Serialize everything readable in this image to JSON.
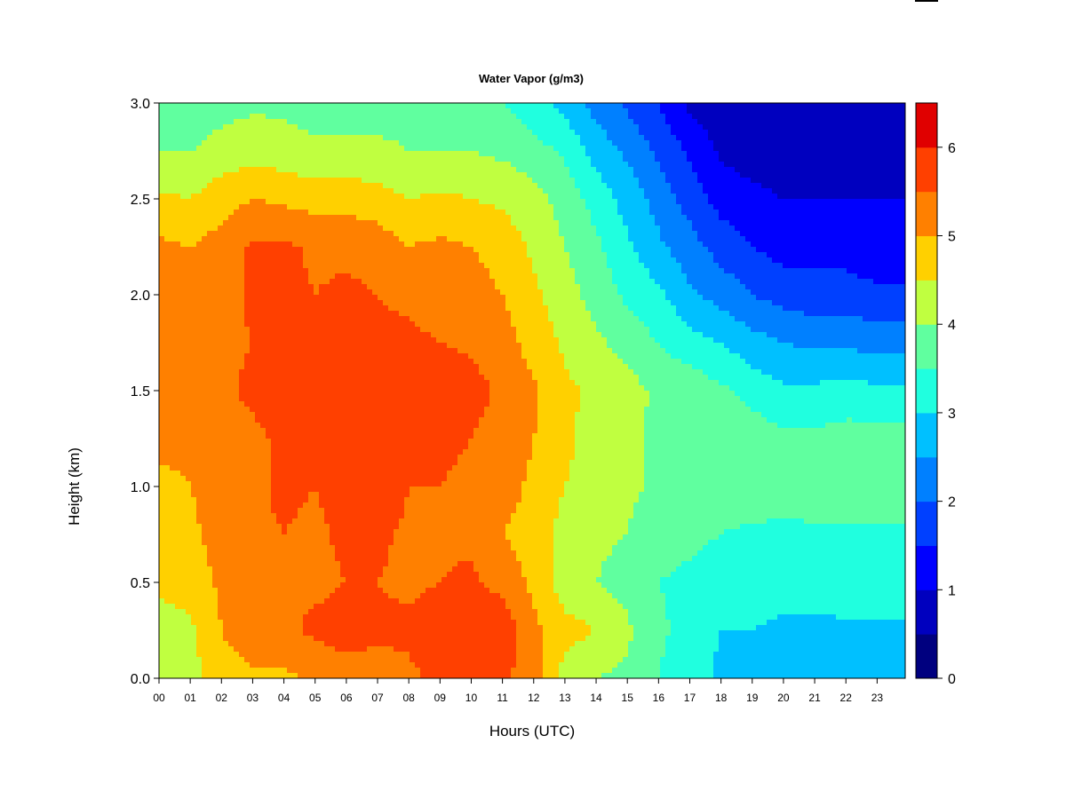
{
  "chart_data": {
    "type": "heatmap",
    "title": "Water Vapor (g/m3)",
    "xlabel": "Hours (UTC)",
    "ylabel": "Height (km)",
    "xlim": [
      0,
      23.9
    ],
    "ylim": [
      0,
      3.0
    ],
    "x_ticks": [
      0,
      1,
      2,
      3,
      4,
      5,
      6,
      7,
      8,
      9,
      10,
      11,
      12,
      13,
      14,
      15,
      16,
      17,
      18,
      19,
      20,
      21,
      22,
      23
    ],
    "x_tick_labels": [
      "00",
      "01",
      "02",
      "03",
      "04",
      "05",
      "06",
      "07",
      "08",
      "09",
      "10",
      "11",
      "12",
      "13",
      "14",
      "15",
      "16",
      "17",
      "18",
      "19",
      "20",
      "21",
      "22",
      "23"
    ],
    "y_ticks": [
      0,
      0.5,
      1.0,
      1.5,
      2.0,
      2.5,
      3.0
    ],
    "y_tick_labels": [
      "0.0",
      "0.5",
      "1.0",
      "1.5",
      "2.0",
      "2.5",
      "3.0"
    ],
    "colorbar": {
      "levels": [
        0,
        0.5,
        1,
        1.5,
        2,
        2.5,
        3,
        3.5,
        4,
        4.5,
        5,
        5.5,
        6,
        6.5
      ],
      "tick_values": [
        0,
        1,
        2,
        3,
        4,
        5,
        6
      ],
      "tick_labels": [
        "0",
        "1",
        "2",
        "3",
        "4",
        "5",
        "6"
      ],
      "colors": [
        "#00007F",
        "#0000BF",
        "#0000FF",
        "#0040FF",
        "#0080FF",
        "#00C0FF",
        "#20FFDF",
        "#60FF9F",
        "#C0FF40",
        "#FFD000",
        "#FF8000",
        "#FF4000",
        "#E00000",
        "#800000"
      ]
    },
    "profile_heights_km": [
      0,
      0.25,
      0.5,
      0.75,
      1.0,
      1.25,
      1.5,
      1.75,
      2.0,
      2.25,
      2.5,
      2.75,
      3.0
    ],
    "profiles": [
      {
        "hour": 0,
        "values": [
          4.2,
          4.3,
          4.6,
          4.8,
          4.9,
          5.1,
          5.3,
          5.4,
          5.3,
          5.1,
          4.6,
          4.0,
          3.5
        ]
      },
      {
        "hour": 1,
        "values": [
          4.3,
          4.4,
          4.7,
          4.9,
          5.0,
          5.1,
          5.3,
          5.3,
          5.2,
          5.0,
          4.5,
          4.0,
          3.6
        ]
      },
      {
        "hour": 2,
        "values": [
          4.8,
          5.0,
          5.1,
          5.2,
          5.2,
          5.3,
          5.4,
          5.4,
          5.3,
          5.2,
          4.8,
          4.2,
          3.8
        ]
      },
      {
        "hour": 3,
        "values": [
          4.9,
          5.3,
          5.3,
          5.4,
          5.4,
          5.4,
          5.6,
          5.5,
          5.6,
          5.6,
          5.0,
          4.3,
          3.9
        ]
      },
      {
        "hour": 4,
        "values": [
          4.9,
          5.4,
          5.4,
          5.5,
          5.6,
          5.6,
          5.8,
          5.6,
          5.7,
          5.6,
          4.9,
          4.2,
          3.9
        ]
      },
      {
        "hour": 5,
        "values": [
          5.1,
          5.6,
          5.4,
          5.4,
          5.5,
          5.5,
          5.6,
          5.5,
          5.5,
          5.4,
          4.8,
          4.1,
          3.8
        ]
      },
      {
        "hour": 6,
        "values": [
          5.3,
          5.7,
          5.5,
          5.6,
          5.7,
          5.7,
          5.8,
          5.6,
          5.6,
          5.4,
          4.8,
          4.1,
          3.8
        ]
      },
      {
        "hour": 7,
        "values": [
          5.3,
          5.6,
          5.5,
          5.6,
          5.9,
          5.9,
          5.9,
          5.6,
          5.5,
          5.3,
          4.7,
          4.1,
          3.8
        ]
      },
      {
        "hour": 8,
        "values": [
          5.4,
          5.6,
          5.4,
          5.4,
          5.5,
          5.6,
          5.8,
          5.6,
          5.4,
          5.0,
          4.5,
          4.0,
          3.8
        ]
      },
      {
        "hour": 9,
        "values": [
          5.6,
          5.9,
          5.5,
          5.4,
          5.5,
          5.6,
          5.8,
          5.5,
          5.3,
          5.1,
          4.6,
          4.0,
          3.7
        ]
      },
      {
        "hour": 10,
        "values": [
          5.6,
          6.0,
          5.6,
          5.4,
          5.4,
          5.5,
          5.7,
          5.4,
          5.2,
          5.0,
          4.5,
          4.0,
          3.6
        ]
      },
      {
        "hour": 11,
        "values": [
          5.6,
          5.9,
          5.3,
          5.0,
          5.2,
          5.3,
          5.4,
          5.2,
          5.0,
          4.8,
          4.4,
          3.9,
          3.5
        ]
      },
      {
        "hour": 12,
        "values": [
          5.2,
          5.1,
          4.9,
          4.8,
          4.9,
          5.0,
          5.1,
          4.8,
          4.6,
          4.4,
          4.2,
          3.7,
          3.2
        ]
      },
      {
        "hour": 13,
        "values": [
          4.3,
          4.7,
          4.2,
          4.3,
          4.5,
          4.6,
          4.6,
          4.4,
          4.2,
          4.0,
          3.8,
          3.4,
          2.8
        ]
      },
      {
        "hour": 14,
        "values": [
          4.0,
          4.5,
          4.0,
          4.1,
          4.3,
          4.3,
          4.4,
          4.1,
          3.8,
          3.6,
          3.3,
          2.8,
          2.3
        ]
      },
      {
        "hour": 15,
        "values": [
          3.9,
          4.1,
          3.8,
          4.0,
          4.1,
          4.1,
          4.2,
          3.8,
          3.4,
          3.1,
          2.8,
          2.4,
          1.9
        ]
      },
      {
        "hour": 16,
        "values": [
          3.5,
          3.6,
          3.5,
          3.7,
          3.9,
          3.9,
          3.9,
          3.5,
          3.1,
          2.6,
          2.3,
          1.9,
          1.5
        ]
      },
      {
        "hour": 17,
        "values": [
          3.2,
          3.3,
          3.4,
          3.6,
          4.0,
          4.0,
          3.8,
          3.2,
          2.6,
          2.2,
          1.8,
          1.4,
          0.9
        ]
      },
      {
        "hour": 18,
        "values": [
          2.9,
          3.0,
          3.3,
          3.5,
          3.8,
          3.8,
          3.6,
          3.0,
          2.3,
          1.8,
          1.3,
          0.9,
          0.7
        ]
      },
      {
        "hour": 19,
        "values": [
          2.8,
          3.0,
          3.3,
          3.4,
          3.8,
          3.8,
          3.3,
          2.7,
          2.0,
          1.5,
          1.1,
          0.8,
          0.7
        ]
      },
      {
        "hour": 20,
        "values": [
          2.7,
          2.9,
          3.2,
          3.4,
          3.7,
          3.6,
          3.1,
          2.5,
          1.8,
          1.3,
          1.0,
          0.8,
          0.6
        ]
      },
      {
        "hour": 21,
        "values": [
          2.7,
          2.9,
          3.2,
          3.4,
          3.8,
          3.6,
          3.1,
          2.4,
          1.7,
          1.3,
          1.0,
          0.8,
          0.5
        ]
      },
      {
        "hour": 22,
        "values": [
          2.7,
          2.9,
          3.3,
          3.4,
          3.8,
          3.7,
          3.2,
          2.4,
          1.7,
          1.3,
          1.0,
          0.8,
          0.5
        ]
      },
      {
        "hour": 23,
        "values": [
          2.7,
          2.9,
          3.3,
          3.4,
          3.8,
          3.7,
          3.1,
          2.3,
          1.6,
          1.2,
          1.0,
          0.7,
          0.6
        ]
      },
      {
        "hour": 23.9,
        "values": [
          2.7,
          2.9,
          3.3,
          3.4,
          3.8,
          3.7,
          3.1,
          2.3,
          1.6,
          1.2,
          1.0,
          0.7,
          0.6
        ]
      }
    ]
  }
}
